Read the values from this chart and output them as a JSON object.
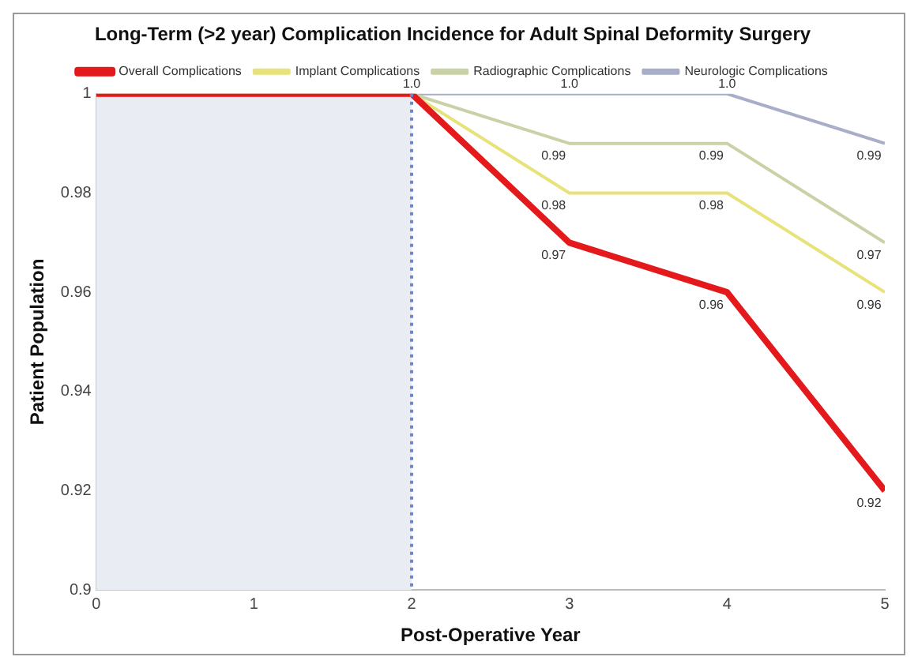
{
  "chart_data": {
    "type": "line",
    "title": "Long-Term (>2 year) Complication Incidence for Adult Spinal Deformity Surgery",
    "xlabel": "Post-Operative Year",
    "ylabel": "Patient Population",
    "x": [
      0,
      2,
      3,
      4,
      5
    ],
    "series": [
      {
        "name": "Overall Complications",
        "color": "#e3191c",
        "values": [
          1,
          1,
          0.97,
          0.96,
          0.92
        ],
        "value_labels": [
          null,
          "1.0",
          "0.97",
          "0.96",
          "0.92"
        ]
      },
      {
        "name": "Implant Complications",
        "color": "#e8e27a",
        "values": [
          1,
          1,
          0.98,
          0.98,
          0.96
        ],
        "value_labels": [
          null,
          null,
          "0.98",
          "0.98",
          "0.96"
        ]
      },
      {
        "name": "Radiographic Complications",
        "color": "#c9d2a6",
        "values": [
          1,
          1,
          0.99,
          0.99,
          0.97
        ],
        "value_labels": [
          null,
          null,
          "0.99",
          "0.99",
          "0.97"
        ]
      },
      {
        "name": "Neurologic Complications",
        "color": "#a9aec8",
        "values": [
          1,
          1,
          1,
          1,
          0.99
        ],
        "value_labels": [
          null,
          null,
          "1.0",
          "1.0",
          "0.99"
        ]
      }
    ],
    "xlim": [
      0,
      5
    ],
    "xticks": [
      0,
      1,
      2,
      3,
      4,
      5
    ],
    "ylim": [
      0.9,
      1
    ],
    "yticks": [
      {
        "value": 0.9,
        "label": "0.9"
      },
      0.92,
      0.94,
      0.96,
      0.98,
      {
        "value": 1,
        "label": "1"
      }
    ],
    "bands": [
      {
        "axis": "x",
        "from": 0,
        "to": 2,
        "color": "#e9ecf2"
      }
    ],
    "ref_lines": [
      {
        "axis": "x",
        "value": 2,
        "color": "#6f86c9",
        "line_style": "dotted"
      }
    ],
    "legend": "top",
    "marker": "none",
    "line_style": "solid",
    "grid": false
  }
}
